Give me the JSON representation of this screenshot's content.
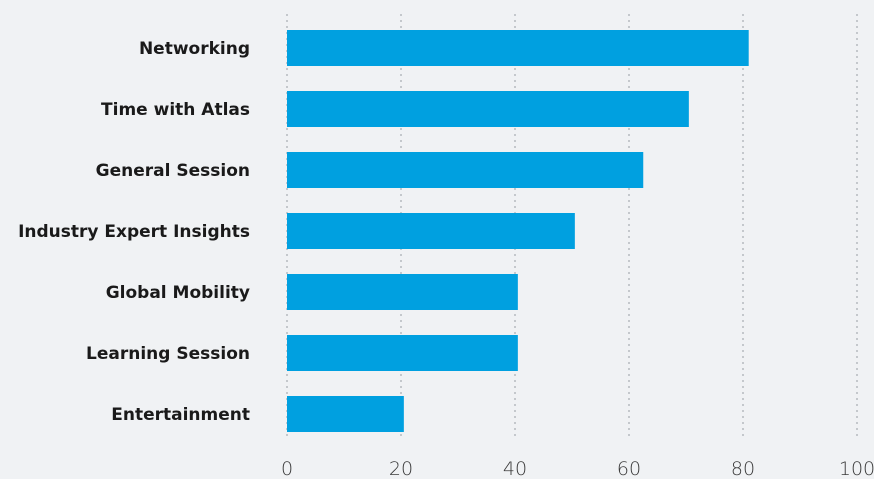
{
  "chart_data": {
    "type": "bar",
    "orientation": "horizontal",
    "categories": [
      "Networking",
      "Time with Atlas",
      "General Session",
      "Industry Expert Insights",
      "Global Mobility",
      "Learning Session",
      "Entertainment"
    ],
    "values": [
      81,
      70.5,
      62.5,
      50.5,
      40.5,
      40.5,
      20.5
    ],
    "xlim": [
      0,
      100
    ],
    "xticks": [
      0,
      20,
      40,
      60,
      80,
      100
    ],
    "grid": true,
    "grid_style": "dotted-vertical",
    "legend": "none",
    "bar_color": "#00a0e0",
    "background_color": "#f0f2f4"
  }
}
